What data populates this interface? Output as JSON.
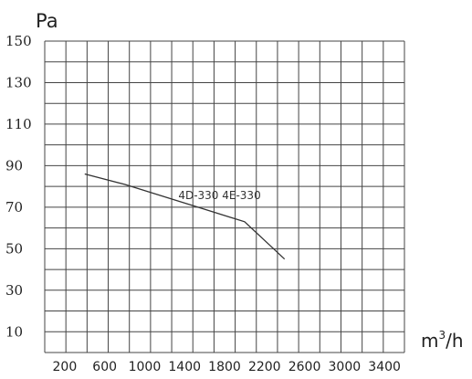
{
  "chart_data": {
    "type": "line",
    "ylabel": "Pa",
    "xlabel_base": "m",
    "xlabel_sup": "3",
    "xlabel_tail": "/h",
    "ylim": [
      0,
      150
    ],
    "xlim": [
      0,
      3600
    ],
    "grid": true,
    "y_ticks": [
      {
        "value": 150,
        "label": "150"
      },
      {
        "value": 130,
        "label": "130"
      },
      {
        "value": 110,
        "label": "110"
      },
      {
        "value": 90,
        "label": "90"
      },
      {
        "value": 70,
        "label": "70"
      },
      {
        "value": 50,
        "label": "50"
      },
      {
        "value": 30,
        "label": "30"
      },
      {
        "value": 10,
        "label": "10"
      }
    ],
    "x_ticks": [
      {
        "value": 200,
        "label": "200"
      },
      {
        "value": 600,
        "label": "600"
      },
      {
        "value": 1000,
        "label": "1000"
      },
      {
        "value": 1400,
        "label": "1400"
      },
      {
        "value": 1800,
        "label": "1800"
      },
      {
        "value": 2200,
        "label": "2200"
      },
      {
        "value": 2600,
        "label": "2600"
      },
      {
        "value": 3000,
        "label": "3000"
      },
      {
        "value": 3400,
        "label": "3400"
      }
    ],
    "series": [
      {
        "name": "4D-330  4E-330",
        "x": [
          400,
          800,
          1200,
          1600,
          2000,
          2200,
          2400
        ],
        "y": [
          86,
          81,
          75,
          69,
          63,
          54,
          45
        ],
        "label_x": 1750,
        "label_y": 74
      }
    ]
  }
}
